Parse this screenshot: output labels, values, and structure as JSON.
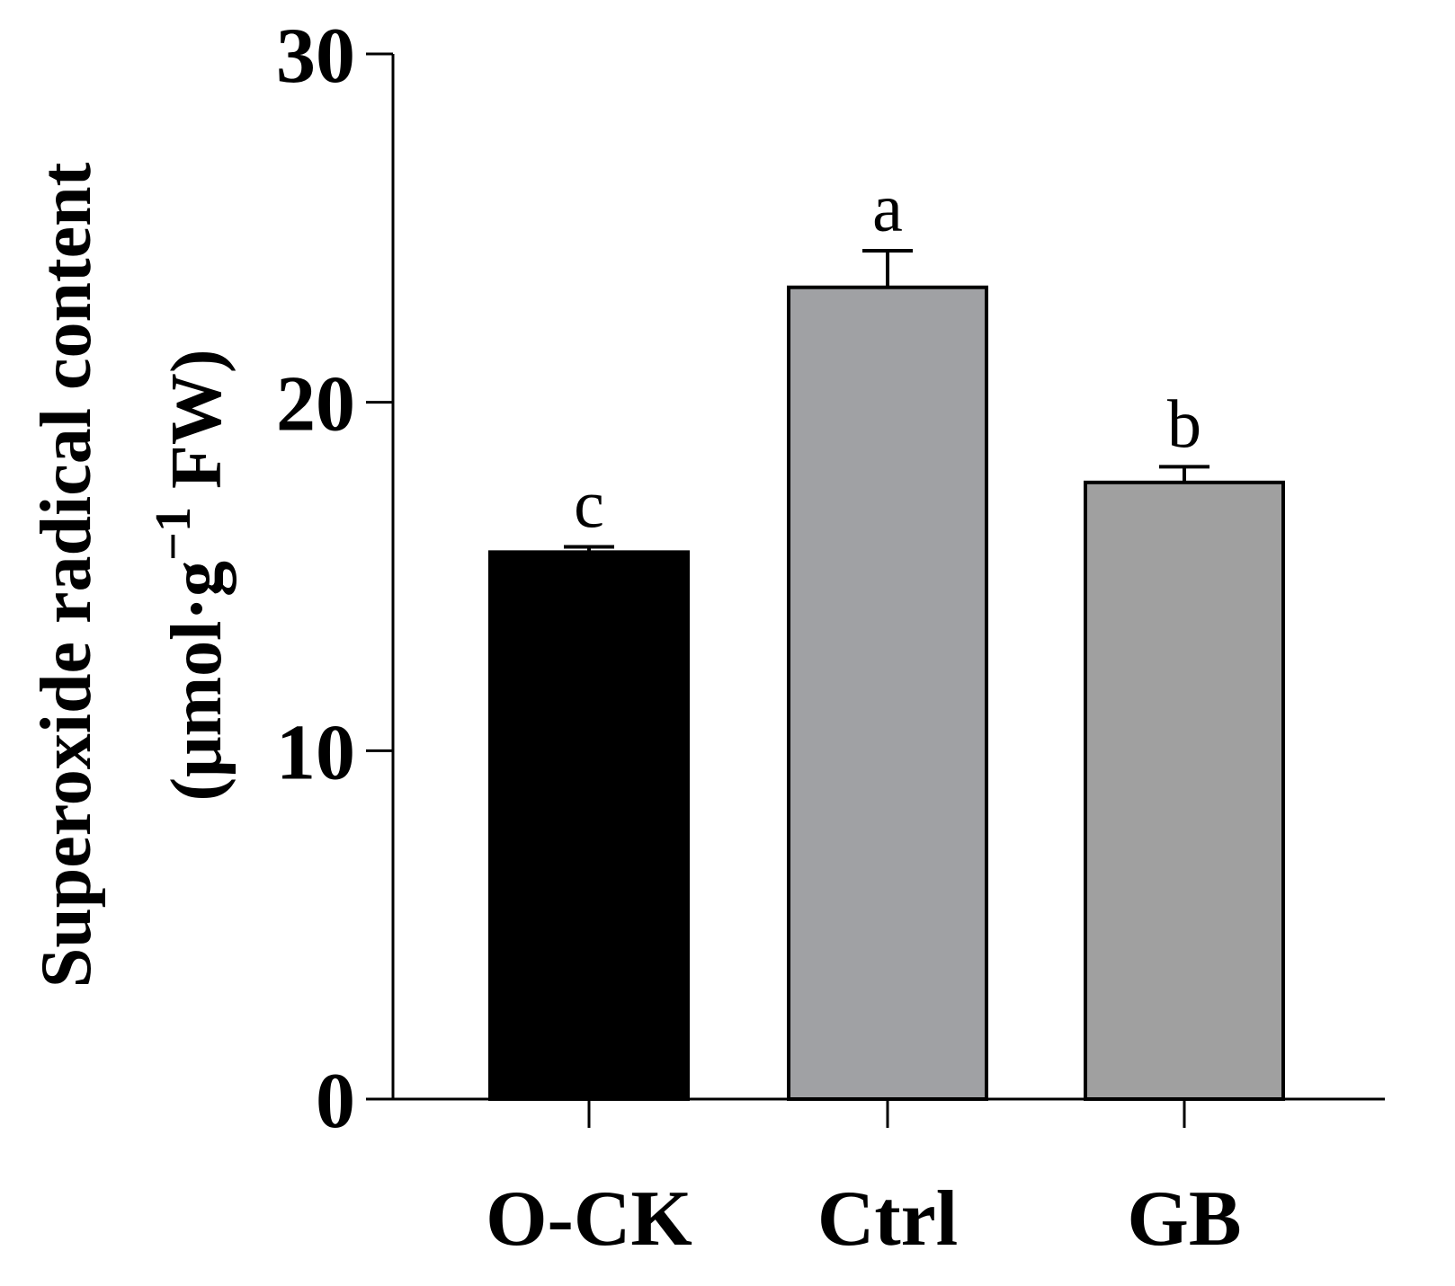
{
  "chart_data": {
    "type": "bar",
    "title": "",
    "categories": [
      "O-CK",
      "Ctrl",
      "GB"
    ],
    "values": [
      15.7,
      23.3,
      17.7
    ],
    "errors": [
      0.15,
      1.05,
      0.45
    ],
    "significance": [
      "c",
      "a",
      "b"
    ],
    "bar_colors": [
      "#000000",
      "#a0a1a4",
      "#a0a0a0"
    ],
    "ylabel_line1": "Superoxide radical content",
    "ylabel_line2_prefix": "(μmol·g",
    "ylabel_line2_sup": "−1",
    "ylabel_line2_suffix": " FW)",
    "xlabel": "",
    "ylim": [
      0,
      30
    ],
    "yticks": [
      0,
      10,
      20,
      30
    ],
    "grid": false
  }
}
